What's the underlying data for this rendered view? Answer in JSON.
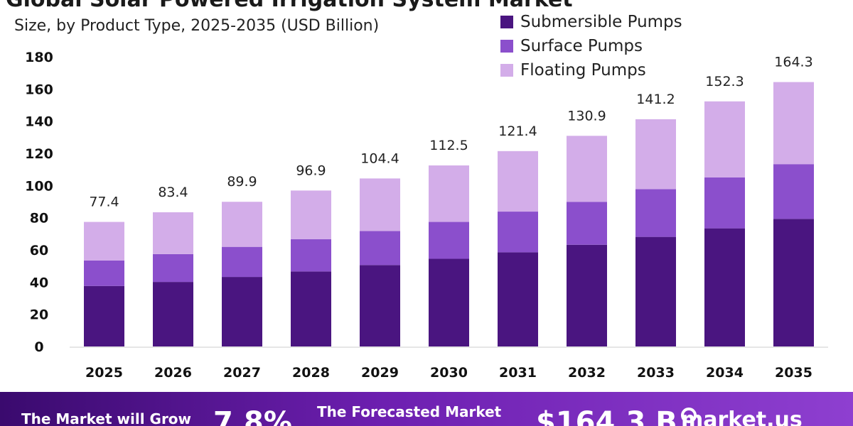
{
  "header": {
    "title": "Global Solar Powered Irrigation System Market",
    "subtitle": "Size, by Product Type, 2025-2035 (USD Billion)"
  },
  "colors": {
    "submersible": "#4a1580",
    "surface": "#8b4fcc",
    "floating": "#d3ade9",
    "banner_start": "#3a0a6e",
    "banner_end": "#8e3fd0"
  },
  "legend": [
    {
      "label": "Submersible Pumps",
      "color": "#4a1580"
    },
    {
      "label": "Surface Pumps",
      "color": "#8b4fcc"
    },
    {
      "label": "Floating Pumps",
      "color": "#d3ade9"
    }
  ],
  "banner": {
    "grow_text": "The Market will Grow",
    "cagr": "7.8%",
    "forecast_text": "The Forecasted Market",
    "forecast_value": "$164.3 B",
    "brand": "market.us"
  },
  "chart_data": {
    "type": "bar",
    "stacked": true,
    "title": "Global Solar Powered Irrigation System Market",
    "subtitle": "Size, by Product Type, 2025-2035 (USD Billion)",
    "categories": [
      "2025",
      "2026",
      "2027",
      "2028",
      "2029",
      "2030",
      "2031",
      "2032",
      "2033",
      "2034",
      "2035"
    ],
    "series": [
      {
        "name": "Submersible Pumps",
        "values": [
          37.6,
          40.1,
          43.2,
          46.6,
          50.6,
          54.5,
          58.5,
          63.2,
          68.1,
          73.4,
          79.3
        ]
      },
      {
        "name": "Surface Pumps",
        "values": [
          15.8,
          17.3,
          18.7,
          20.1,
          21.1,
          22.9,
          25.3,
          26.7,
          29.7,
          31.6,
          34.0
        ]
      },
      {
        "name": "Floating Pumps",
        "values": [
          24.0,
          26.0,
          28.0,
          30.2,
          32.7,
          35.1,
          37.6,
          41.0,
          43.4,
          47.3,
          51.0
        ]
      }
    ],
    "totals": [
      "77.4",
      "83.4",
      "89.9",
      "96.9",
      "104.4",
      "112.5",
      "121.4",
      "130.9",
      "141.2",
      "152.3",
      "164.3"
    ],
    "ylim": [
      0,
      180
    ],
    "yticks": [
      0,
      20,
      40,
      60,
      80,
      100,
      120,
      140,
      160,
      180
    ],
    "grid": false,
    "legend_position": "top-right"
  }
}
